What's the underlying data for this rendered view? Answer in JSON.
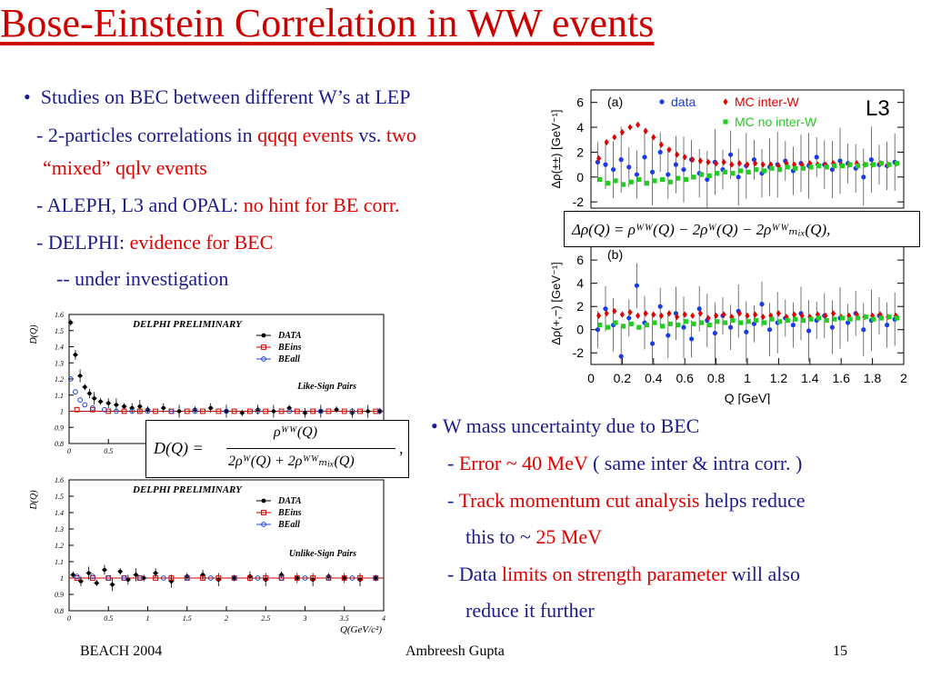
{
  "title": "Bose-Einstein Correlation in WW events",
  "left": {
    "bullet": "•",
    "line1": "Studies on BEC between different W’s at LEP",
    "line2a": "- 2-particles correlations in ",
    "line2b": "qqqq events",
    "line2c": " vs. ",
    "line2d": "two",
    "line3": "“mixed” qqlv events",
    "line4a": "- ALEPH, L3 and OPAL: ",
    "line4b": "no hint for BE corr.",
    "line5a": "- DELPHI: ",
    "line5b": "evidence for BEC",
    "line6": "-- under investigation"
  },
  "right": {
    "bullet": "•",
    "line1": "W mass uncertainty due to BEC",
    "line2a": "- ",
    "line2b": "Error ~ 40 MeV",
    "line2c": " ( same inter & intra corr. )",
    "line3a": "- ",
    "line3b": "Track momentum cut analysis",
    "line3c": " helps reduce",
    "line4a": "this to ~ ",
    "line4b": "25 MeV",
    "line5a": "- Data ",
    "line5b": "limits on strength parameter",
    "line5c": " will also",
    "line6": "reduce it further"
  },
  "formulas": {
    "l3_formula": "Δρ(Q) = ρᵂᵂ(Q) − 2ρᵂ(Q) − 2ρᵂᵂₘᵢₓ(Q),",
    "delphi_lhs": "D(Q) =",
    "delphi_num": "ρᵂᵂ(Q)",
    "delphi_den": "2ρᵂ(Q) + 2ρᵂᵂₘᵢₓ(Q)",
    "delphi_comma": ","
  },
  "footer": {
    "left": "BEACH 2004",
    "center": "Ambreesh Gupta",
    "page": "15"
  },
  "colors": {
    "title": "#cc0000",
    "text": "#1b1b8f",
    "highlight": "#e00000",
    "data": "#1a3ce6",
    "mc_inter": "#e00000",
    "mc_no_inter": "#22cc22"
  },
  "chart_data": [
    {
      "id": "l3_a",
      "type": "scatter",
      "panel_label": "(a)",
      "logo": "L3",
      "ylabel": "Δρ(±±) [GeV⁻¹]",
      "xlabel": "",
      "xlim": [
        0,
        2
      ],
      "ylim": [
        -2.5,
        7
      ],
      "yticks": [
        6,
        4,
        2,
        0,
        -2
      ],
      "xticks": [],
      "legend": [
        "data",
        "MC inter-W",
        "MC no inter-W"
      ],
      "series": [
        {
          "name": "data",
          "color": "#1a3ce6",
          "marker": "circle",
          "errors": true,
          "x": [
            0.05,
            0.1,
            0.15,
            0.2,
            0.25,
            0.3,
            0.35,
            0.4,
            0.45,
            0.5,
            0.55,
            0.6,
            0.65,
            0.7,
            0.75,
            0.8,
            0.85,
            0.9,
            0.95,
            1.0,
            1.05,
            1.1,
            1.15,
            1.2,
            1.25,
            1.3,
            1.35,
            1.4,
            1.45,
            1.5,
            1.55,
            1.6,
            1.65,
            1.7,
            1.75,
            1.8,
            1.85,
            1.9,
            1.95
          ],
          "y": [
            1.2,
            1.0,
            0.6,
            1.4,
            0.8,
            0.2,
            1.6,
            0.4,
            2.0,
            0.2,
            1.0,
            0.6,
            1.4,
            0.3,
            -0.2,
            1.2,
            0.6,
            1.8,
            0.0,
            0.9,
            1.4,
            0.3,
            0.8,
            1.0,
            1.3,
            0.5,
            1.1,
            0.9,
            1.6,
            1.0,
            0.6,
            1.3,
            1.1,
            0.7,
            0.0,
            1.4,
            1.0,
            0.9,
            1.2
          ]
        },
        {
          "name": "MC inter-W",
          "color": "#e00000",
          "marker": "diamond",
          "errors": false,
          "x": [
            0.05,
            0.1,
            0.15,
            0.2,
            0.25,
            0.3,
            0.35,
            0.4,
            0.45,
            0.5,
            0.55,
            0.6,
            0.65,
            0.7,
            0.75,
            0.8,
            0.85,
            0.9,
            0.95,
            1.0,
            1.05,
            1.1,
            1.15,
            1.2,
            1.25,
            1.3,
            1.35,
            1.4,
            1.45,
            1.5,
            1.55,
            1.6,
            1.65,
            1.7,
            1.75,
            1.8,
            1.85,
            1.9,
            1.95
          ],
          "y": [
            1.5,
            2.8,
            3.2,
            3.6,
            4.0,
            4.2,
            3.7,
            3.2,
            2.6,
            2.2,
            1.8,
            1.6,
            1.4,
            1.3,
            1.2,
            1.1,
            1.2,
            1.0,
            1.1,
            1.0,
            1.1,
            1.0,
            1.0,
            0.9,
            1.1,
            1.0,
            1.0,
            1.1,
            1.0,
            1.0,
            1.1,
            1.0,
            1.0,
            1.1,
            1.0,
            1.0,
            1.1,
            1.0,
            1.1
          ]
        },
        {
          "name": "MC no inter-W",
          "color": "#22cc22",
          "marker": "square",
          "errors": false,
          "x": [
            0.05,
            0.1,
            0.15,
            0.2,
            0.25,
            0.3,
            0.35,
            0.4,
            0.45,
            0.5,
            0.55,
            0.6,
            0.65,
            0.7,
            0.75,
            0.8,
            0.85,
            0.9,
            0.95,
            1.0,
            1.05,
            1.1,
            1.15,
            1.2,
            1.25,
            1.3,
            1.35,
            1.4,
            1.45,
            1.5,
            1.55,
            1.6,
            1.65,
            1.7,
            1.75,
            1.8,
            1.85,
            1.9,
            1.95
          ],
          "y": [
            -0.2,
            -0.5,
            -0.3,
            -0.6,
            -0.4,
            -0.2,
            -0.5,
            -0.3,
            -0.2,
            -0.4,
            -0.1,
            -0.2,
            0.0,
            0.2,
            0.1,
            0.3,
            0.4,
            0.3,
            0.5,
            0.4,
            0.6,
            0.5,
            0.7,
            0.6,
            0.8,
            0.7,
            0.7,
            0.8,
            0.9,
            0.8,
            0.9,
            0.9,
            1.0,
            0.9,
            1.0,
            1.0,
            1.1,
            1.0,
            1.1
          ]
        }
      ]
    },
    {
      "id": "l3_b",
      "type": "scatter",
      "panel_label": "(b)",
      "ylabel": "Δρ(+,−) [GeV⁻¹]",
      "xlabel": "Q [GeV]",
      "xlim": [
        0,
        2
      ],
      "ylim": [
        -3,
        7.5
      ],
      "yticks": [
        6,
        4,
        2,
        0,
        -2
      ],
      "xticks": [
        0,
        0.2,
        0.4,
        0.6,
        0.8,
        1,
        1.2,
        1.4,
        1.6,
        1.8,
        2
      ],
      "series": [
        {
          "name": "data",
          "color": "#1a3ce6",
          "marker": "circle",
          "errors": true,
          "x": [
            0.05,
            0.1,
            0.15,
            0.2,
            0.25,
            0.3,
            0.35,
            0.4,
            0.45,
            0.5,
            0.55,
            0.6,
            0.65,
            0.7,
            0.75,
            0.8,
            0.85,
            0.9,
            0.95,
            1.0,
            1.05,
            1.1,
            1.15,
            1.2,
            1.25,
            1.3,
            1.35,
            1.4,
            1.45,
            1.5,
            1.55,
            1.6,
            1.65,
            1.7,
            1.75,
            1.8,
            1.85,
            1.9,
            1.95
          ],
          "y": [
            0.0,
            1.8,
            0.4,
            -2.3,
            1.0,
            3.8,
            0.6,
            -1.2,
            2.0,
            -0.5,
            1.4,
            0.2,
            -0.8,
            1.8,
            0.8,
            -0.3,
            1.2,
            0.2,
            1.6,
            -0.2,
            0.5,
            2.2,
            0.0,
            0.6,
            1.0,
            0.4,
            1.4,
            -0.1,
            0.8,
            1.2,
            0.2,
            1.0,
            0.6,
            1.4,
            0.0,
            0.8,
            1.2,
            0.4,
            0.9
          ]
        },
        {
          "name": "MC inter-W",
          "color": "#e00000",
          "marker": "diamond",
          "errors": false,
          "x": [
            0.05,
            0.1,
            0.15,
            0.2,
            0.25,
            0.3,
            0.35,
            0.4,
            0.45,
            0.5,
            0.55,
            0.6,
            0.65,
            0.7,
            0.75,
            0.8,
            0.85,
            0.9,
            0.95,
            1.0,
            1.05,
            1.1,
            1.15,
            1.2,
            1.25,
            1.3,
            1.35,
            1.4,
            1.45,
            1.5,
            1.55,
            1.6,
            1.65,
            1.7,
            1.75,
            1.8,
            1.85,
            1.9,
            1.95
          ],
          "y": [
            1.2,
            1.4,
            1.6,
            1.3,
            1.5,
            1.2,
            1.4,
            1.3,
            1.2,
            1.4,
            1.1,
            1.3,
            1.2,
            1.4,
            1.0,
            1.2,
            1.3,
            1.1,
            1.4,
            1.2,
            1.3,
            1.1,
            1.2,
            1.4,
            1.1,
            1.3,
            1.2,
            1.1,
            1.3,
            1.2,
            1.4,
            1.1,
            1.2,
            1.3,
            1.1,
            1.2,
            1.3,
            1.1,
            1.2
          ]
        },
        {
          "name": "MC no inter-W",
          "color": "#22cc22",
          "marker": "square",
          "errors": false,
          "x": [
            0.05,
            0.1,
            0.15,
            0.2,
            0.25,
            0.3,
            0.35,
            0.4,
            0.45,
            0.5,
            0.55,
            0.6,
            0.65,
            0.7,
            0.75,
            0.8,
            0.85,
            0.9,
            0.95,
            1.0,
            1.05,
            1.1,
            1.15,
            1.2,
            1.25,
            1.3,
            1.35,
            1.4,
            1.45,
            1.5,
            1.55,
            1.6,
            1.65,
            1.7,
            1.75,
            1.8,
            1.85,
            1.9,
            1.95
          ],
          "y": [
            0.4,
            0.2,
            0.6,
            0.3,
            0.5,
            0.2,
            0.4,
            0.6,
            0.3,
            0.5,
            0.4,
            0.7,
            0.5,
            0.6,
            0.4,
            0.7,
            0.6,
            0.8,
            0.6,
            0.7,
            0.8,
            0.6,
            0.9,
            0.7,
            0.8,
            0.9,
            0.8,
            0.9,
            1.0,
            0.8,
            0.9,
            1.0,
            0.9,
            1.0,
            1.1,
            0.9,
            1.0,
            1.1,
            1.0
          ]
        }
      ]
    },
    {
      "id": "delphi_like",
      "type": "scatter",
      "title": "DELPHI PRELIMINARY",
      "subtitle": "Like-Sign Pairs",
      "ylabel": "D(Q)",
      "xlabel": "",
      "xlim": [
        0,
        4
      ],
      "ylim": [
        0.8,
        1.6
      ],
      "yticks": [
        1.6,
        1.5,
        1.4,
        1.3,
        1.2,
        1.1,
        1,
        0.9,
        0.8
      ],
      "xticks": [
        0,
        0.5
      ],
      "legend": [
        "DATA",
        "BEins",
        "BEall"
      ],
      "series": [
        {
          "name": "DATA",
          "color": "#000000",
          "marker": "circle",
          "errors": true,
          "x": [
            0.02,
            0.08,
            0.14,
            0.2,
            0.26,
            0.32,
            0.4,
            0.5,
            0.6,
            0.7,
            0.8,
            0.9,
            1.0,
            1.2,
            1.4,
            1.6,
            1.8,
            2.0,
            2.2,
            2.4,
            2.6,
            2.8,
            3.0,
            3.2,
            3.4,
            3.6,
            3.8,
            3.95
          ],
          "y": [
            1.55,
            1.35,
            1.22,
            1.15,
            1.11,
            1.08,
            1.06,
            1.05,
            1.04,
            1.03,
            1.02,
            1.03,
            1.01,
            1.02,
            1.0,
            1.01,
            1.02,
            1.0,
            0.99,
            1.01,
            1.0,
            1.02,
            0.99,
            1.0,
            1.01,
            0.99,
            1.0,
            1.0
          ]
        },
        {
          "name": "BEins",
          "color": "#cc0000",
          "marker": "square-open",
          "errors": false,
          "x": [
            0.1,
            0.3,
            0.5,
            0.7,
            0.9,
            1.1,
            1.3,
            1.5,
            1.7,
            1.9,
            2.1,
            2.3,
            2.5,
            2.7,
            2.9,
            3.1,
            3.3,
            3.5,
            3.7,
            3.9
          ],
          "y": [
            1.01,
            1.01,
            1.0,
            1.0,
            1.0,
            1.0,
            1.0,
            1.0,
            1.0,
            1.0,
            1.0,
            1.0,
            1.0,
            1.0,
            1.0,
            1.0,
            1.0,
            1.0,
            1.0,
            1.0
          ]
        },
        {
          "name": "BEall",
          "color": "#2244cc",
          "marker": "circle-open",
          "errors": false,
          "x": [
            0.02,
            0.08,
            0.14,
            0.2,
            0.3,
            0.45,
            0.6,
            0.8,
            1.0,
            1.3,
            1.6,
            2.0,
            2.4,
            2.8,
            3.2,
            3.6,
            3.95
          ],
          "y": [
            1.2,
            1.12,
            1.07,
            1.04,
            1.02,
            1.01,
            1.0,
            1.0,
            1.0,
            1.0,
            1.0,
            1.0,
            1.0,
            1.0,
            1.0,
            1.0,
            1.0
          ]
        }
      ]
    },
    {
      "id": "delphi_unlike",
      "type": "scatter",
      "title": "DELPHI PRELIMINARY",
      "subtitle": "Unlike-Sign Pairs",
      "ylabel": "D(Q)",
      "xlabel": "Q(GeV/c²)",
      "xlim": [
        0,
        4
      ],
      "ylim": [
        0.8,
        1.6
      ],
      "yticks": [
        1.6,
        1.5,
        1.4,
        1.3,
        1.2,
        1.1,
        1,
        0.9,
        0.8
      ],
      "xticks": [
        0,
        0.5,
        1,
        1.5,
        2,
        2.5,
        3,
        3.5,
        4
      ],
      "legend": [
        "DATA",
        "BEins",
        "BEall"
      ],
      "series": [
        {
          "name": "DATA",
          "color": "#000000",
          "marker": "circle",
          "errors": true,
          "x": [
            0.05,
            0.15,
            0.25,
            0.35,
            0.45,
            0.55,
            0.65,
            0.75,
            0.85,
            0.95,
            1.1,
            1.3,
            1.5,
            1.7,
            1.9,
            2.1,
            2.3,
            2.5,
            2.7,
            2.9,
            3.1,
            3.3,
            3.5,
            3.7,
            3.9
          ],
          "y": [
            1.02,
            0.98,
            1.03,
            0.97,
            1.05,
            0.96,
            1.04,
            0.99,
            1.02,
            1.0,
            1.03,
            0.98,
            1.01,
            1.02,
            0.99,
            1.0,
            1.01,
            0.99,
            1.02,
            1.0,
            0.99,
            1.01,
            1.0,
            0.99,
            1.0
          ]
        },
        {
          "name": "BEins",
          "color": "#cc0000",
          "marker": "square-open",
          "errors": false,
          "x": [
            0.1,
            0.3,
            0.5,
            0.7,
            0.9,
            1.1,
            1.3,
            1.5,
            1.7,
            1.9,
            2.1,
            2.3,
            2.5,
            2.7,
            2.9,
            3.1,
            3.3,
            3.5,
            3.7,
            3.9
          ],
          "y": [
            1.0,
            1.0,
            1.0,
            1.0,
            1.0,
            1.0,
            1.0,
            1.0,
            1.0,
            1.0,
            1.0,
            1.0,
            1.0,
            1.0,
            1.0,
            1.0,
            1.0,
            1.0,
            1.0,
            1.0
          ]
        },
        {
          "name": "BEall",
          "color": "#2244cc",
          "marker": "circle-open",
          "errors": false,
          "x": [
            0.1,
            0.3,
            0.5,
            0.7,
            0.9,
            1.2,
            1.5,
            1.8,
            2.1,
            2.4,
            2.7,
            3.0,
            3.3,
            3.6,
            3.9
          ],
          "y": [
            1.01,
            1.01,
            1.0,
            1.0,
            1.0,
            1.0,
            1.0,
            1.0,
            1.0,
            1.0,
            1.0,
            1.0,
            1.0,
            1.0,
            1.0
          ]
        }
      ]
    }
  ]
}
